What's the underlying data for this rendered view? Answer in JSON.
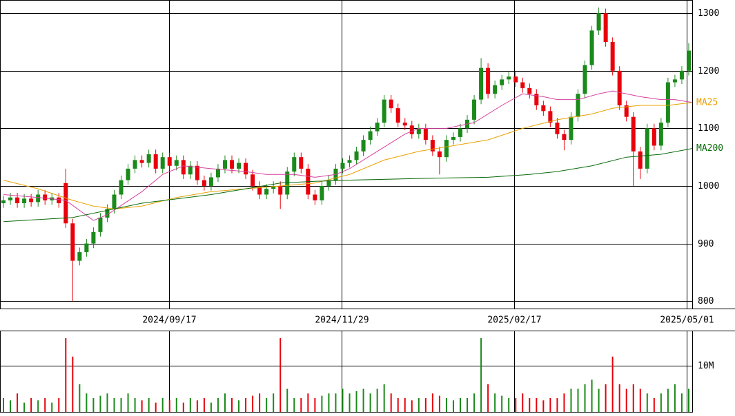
{
  "chart_data": {
    "type": "candlestick",
    "up_color": "#1a8a1a",
    "down_color": "#e8000b",
    "x": [
      0,
      1,
      2,
      3,
      4,
      5,
      6,
      7,
      8,
      9,
      10,
      11,
      12,
      13,
      14,
      15,
      16,
      17,
      18,
      19,
      20,
      21,
      22,
      23,
      24,
      25,
      26,
      27,
      28,
      29,
      30,
      31,
      32,
      33,
      34,
      35,
      36,
      37,
      38,
      39,
      40,
      41,
      42,
      43,
      44,
      45,
      46,
      47,
      48,
      49,
      50,
      51,
      52,
      53,
      54,
      55,
      56,
      57,
      58,
      59,
      60,
      61,
      62,
      63,
      64,
      65,
      66,
      67,
      68,
      69,
      70,
      71,
      72,
      73,
      74,
      75,
      76,
      77,
      78,
      79,
      80,
      81,
      82,
      83,
      84,
      85,
      86,
      87,
      88,
      89,
      90,
      91,
      92,
      93,
      94,
      95,
      96,
      97,
      98,
      99
    ],
    "open": [
      970,
      975,
      980,
      970,
      978,
      972,
      985,
      975,
      980,
      1005,
      935,
      870,
      885,
      900,
      920,
      945,
      960,
      985,
      1010,
      1030,
      1045,
      1040,
      1055,
      1030,
      1050,
      1035,
      1045,
      1020,
      1035,
      1010,
      1000,
      1015,
      1030,
      1045,
      1030,
      1040,
      1020,
      1000,
      985,
      995,
      1000,
      985,
      1025,
      1050,
      1030,
      985,
      975,
      1000,
      1010,
      1030,
      1040,
      1045,
      1060,
      1080,
      1095,
      1110,
      1150,
      1135,
      1110,
      1105,
      1090,
      1100,
      1080,
      1060,
      1050,
      1080,
      1085,
      1100,
      1115,
      1150,
      1205,
      1160,
      1175,
      1185,
      1190,
      1180,
      1170,
      1160,
      1140,
      1130,
      1110,
      1090,
      1080,
      1120,
      1160,
      1210,
      1270,
      1300,
      1250,
      1200,
      1140,
      1120,
      1060,
      1030,
      1100,
      1070,
      1110,
      1180,
      1185,
      1200
    ],
    "high": [
      983,
      988,
      988,
      986,
      986,
      993,
      993,
      988,
      988,
      1030,
      943,
      893,
      908,
      928,
      953,
      968,
      993,
      1018,
      1038,
      1053,
      1053,
      1063,
      1063,
      1058,
      1058,
      1053,
      1053,
      1043,
      1043,
      1018,
      1023,
      1038,
      1053,
      1053,
      1048,
      1048,
      1028,
      1008,
      1003,
      1008,
      1008,
      1033,
      1058,
      1058,
      1038,
      993,
      1008,
      1018,
      1038,
      1048,
      1053,
      1068,
      1088,
      1103,
      1118,
      1158,
      1158,
      1143,
      1118,
      1113,
      1108,
      1108,
      1088,
      1068,
      1088,
      1093,
      1108,
      1123,
      1158,
      1222,
      1213,
      1183,
      1193,
      1198,
      1198,
      1188,
      1178,
      1168,
      1148,
      1138,
      1118,
      1098,
      1128,
      1168,
      1218,
      1278,
      1310,
      1308,
      1258,
      1208,
      1148,
      1128,
      1068,
      1108,
      1108,
      1118,
      1188,
      1193,
      1208,
      1248
    ],
    "low": [
      962,
      967,
      962,
      962,
      964,
      964,
      967,
      967,
      962,
      927,
      800,
      862,
      877,
      892,
      912,
      937,
      952,
      977,
      1002,
      1022,
      1032,
      1032,
      1022,
      1022,
      1027,
      1027,
      1012,
      1012,
      1002,
      992,
      992,
      1007,
      1022,
      1022,
      1022,
      1012,
      992,
      977,
      977,
      987,
      960,
      977,
      1017,
      1022,
      977,
      967,
      967,
      992,
      1002,
      1022,
      1032,
      1037,
      1052,
      1072,
      1087,
      1102,
      1127,
      1102,
      1097,
      1082,
      1082,
      1072,
      1052,
      1020,
      1042,
      1072,
      1077,
      1092,
      1107,
      1142,
      1152,
      1152,
      1167,
      1177,
      1172,
      1162,
      1152,
      1132,
      1122,
      1102,
      1082,
      1062,
      1072,
      1112,
      1152,
      1202,
      1262,
      1242,
      1192,
      1132,
      1112,
      1000,
      1012,
      1022,
      1062,
      1062,
      1102,
      1172,
      1177,
      1192
    ],
    "close": [
      975,
      980,
      970,
      978,
      972,
      985,
      975,
      980,
      970,
      935,
      870,
      885,
      900,
      920,
      945,
      960,
      985,
      1010,
      1030,
      1045,
      1040,
      1055,
      1030,
      1050,
      1035,
      1045,
      1020,
      1035,
      1010,
      1000,
      1015,
      1030,
      1045,
      1030,
      1040,
      1020,
      1000,
      985,
      995,
      1000,
      985,
      1025,
      1050,
      1030,
      985,
      975,
      1000,
      1010,
      1030,
      1040,
      1045,
      1060,
      1080,
      1095,
      1110,
      1150,
      1135,
      1110,
      1105,
      1090,
      1100,
      1080,
      1060,
      1050,
      1080,
      1085,
      1100,
      1115,
      1150,
      1205,
      1160,
      1175,
      1185,
      1190,
      1180,
      1170,
      1160,
      1140,
      1130,
      1110,
      1090,
      1080,
      1120,
      1160,
      1210,
      1270,
      1300,
      1250,
      1200,
      1140,
      1120,
      1060,
      1030,
      1100,
      1070,
      1110,
      1180,
      1185,
      1200,
      1235
    ],
    "xlim": [
      -0.5,
      99.5
    ],
    "xticks": [
      {
        "value": 23.9,
        "label": "2024/09/17"
      },
      {
        "value": 48.85,
        "label": "2024/11/29"
      },
      {
        "value": 73.8,
        "label": "2025/02/17"
      },
      {
        "value": 98.7,
        "label": "2025/05/01"
      }
    ],
    "ylim": [
      787,
      1323
    ],
    "yticks": [
      800,
      900,
      1000,
      1100,
      1200,
      1300
    ],
    "grid": true,
    "lines": [
      {
        "color": "#d6409f",
        "x": [
          0,
          5,
          9,
          13,
          15,
          20,
          23,
          26,
          30,
          35,
          38,
          42,
          45,
          48,
          50,
          54,
          58,
          60,
          64,
          68,
          72,
          75,
          78,
          80,
          83,
          86,
          88,
          90,
          92,
          95,
          97,
          99.5
        ],
        "values": [
          985,
          980,
          975,
          940,
          950,
          990,
          1020,
          1035,
          1030,
          1025,
          1020,
          1020,
          1015,
          1020,
          1030,
          1060,
          1090,
          1100,
          1100,
          1110,
          1140,
          1160,
          1155,
          1150,
          1150,
          1160,
          1165,
          1160,
          1155,
          1150,
          1150,
          1145
        ]
      },
      {
        "name": "MA25",
        "color": "#e8a000",
        "x": [
          0,
          5,
          10,
          13,
          16,
          20,
          25,
          30,
          35,
          40,
          45,
          50,
          55,
          60,
          65,
          70,
          75,
          80,
          85,
          88,
          92,
          96,
          99.5
        ],
        "values": [
          1010,
          995,
          975,
          965,
          960,
          965,
          980,
          990,
          995,
          1000,
          1005,
          1020,
          1045,
          1060,
          1070,
          1080,
          1100,
          1115,
          1125,
          1135,
          1140,
          1140,
          1145
        ]
      },
      {
        "name": "MA200",
        "color": "#0a6a0a",
        "x": [
          0,
          10,
          20,
          30,
          35,
          40,
          45,
          50,
          60,
          70,
          76,
          80,
          85,
          90,
          95,
          99.5
        ],
        "values": [
          938,
          945,
          970,
          985,
          995,
          1005,
          1008,
          1010,
          1013,
          1015,
          1020,
          1025,
          1035,
          1050,
          1055,
          1065
        ]
      }
    ],
    "volume": {
      "ylim": [
        0,
        17.5
      ],
      "yticks": [
        {
          "value": 10,
          "label": "10M"
        }
      ],
      "values": [
        3,
        2.5,
        4,
        2,
        3,
        2.5,
        3,
        2,
        3,
        16,
        12,
        6,
        4,
        3,
        3.5,
        4,
        3,
        3,
        4,
        3,
        2.5,
        3,
        2,
        3,
        2.5,
        3,
        2,
        3,
        2.5,
        3,
        2,
        3,
        4,
        3,
        2.5,
        3,
        3.5,
        4,
        3,
        4,
        16,
        5,
        3,
        3,
        4,
        3,
        3.5,
        4,
        4,
        5,
        4,
        4.5,
        5,
        4,
        5,
        6,
        4,
        3,
        3,
        2.5,
        3,
        3,
        4,
        3.5,
        3,
        2.5,
        3,
        3,
        4,
        16,
        6,
        4,
        3.5,
        3,
        3,
        4,
        3,
        3,
        2.5,
        3,
        3,
        4,
        5,
        5,
        6,
        7,
        5,
        6,
        12,
        6,
        5,
        6,
        5,
        4,
        3,
        4,
        5,
        6,
        4,
        5
      ]
    }
  }
}
